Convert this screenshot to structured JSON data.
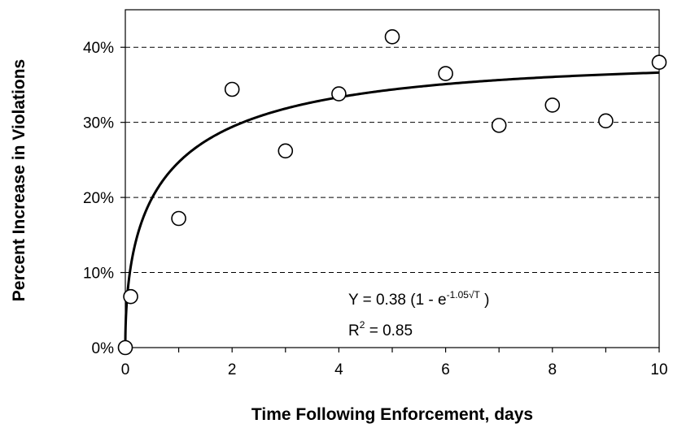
{
  "chart_data": {
    "type": "scatter",
    "title": "",
    "xlabel": "Time Following Enforcement, days",
    "ylabel": "Percent Increase in Violations",
    "xlim": [
      0,
      10
    ],
    "ylim": [
      0,
      0.45
    ],
    "x_ticks": [
      "0",
      "2",
      "4",
      "6",
      "8",
      "10"
    ],
    "y_ticks": [
      "0%",
      "10%",
      "20%",
      "30%",
      "40%"
    ],
    "grid": "horizontal dashed",
    "series": [
      {
        "type": "scatter",
        "marker": "open-circle",
        "x": [
          0,
          0.1,
          1,
          2,
          3,
          4,
          5,
          6,
          7,
          8,
          9,
          10
        ],
        "y": [
          0.0,
          0.068,
          0.172,
          0.344,
          0.262,
          0.338,
          0.414,
          0.365,
          0.296,
          0.323,
          0.302,
          0.38
        ]
      },
      {
        "type": "line",
        "style": "fitted curve",
        "model": {
          "a": 0.38,
          "b": 1.05
        }
      }
    ],
    "annotations": {
      "equation_prefix": "Y = 0.38 (1 - e",
      "equation_exponent": "-1.05√T",
      "equation_suffix": " )",
      "r2_prefix": "R",
      "r2_exponent": "2",
      "r2_suffix": " = 0.85"
    }
  }
}
